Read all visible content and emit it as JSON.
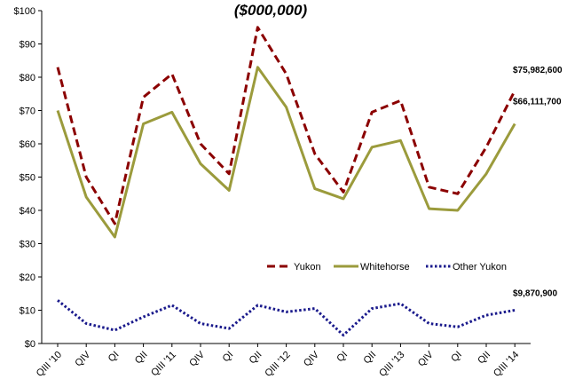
{
  "chart_data": {
    "type": "line",
    "title": "($000,000)",
    "categories": [
      "QIII '10",
      "QIV",
      "QI",
      "QII",
      "QIII '11",
      "QIV",
      "QI",
      "QII",
      "QIII '12",
      "QIV",
      "QI",
      "QII",
      "QIII '13",
      "QIV",
      "QI",
      "QII",
      "QIII '14"
    ],
    "series": [
      {
        "name": "Yukon",
        "color": "#8b0000",
        "style": "dashed",
        "values": [
          83,
          50,
          36,
          74,
          81,
          60,
          51,
          95,
          81,
          57,
          45.5,
          69.5,
          73,
          47,
          45,
          59,
          76
        ]
      },
      {
        "name": "Whitehorse",
        "color": "#9b9b3c",
        "style": "solid",
        "values": [
          70,
          44,
          32,
          66,
          69.5,
          54,
          46,
          83,
          71,
          46.5,
          43.5,
          59,
          61,
          40.5,
          40,
          51,
          66
        ]
      },
      {
        "name": "Other Yukon",
        "color": "#1a1a8c",
        "style": "dotted",
        "values": [
          13,
          6,
          4,
          8,
          11.5,
          6,
          4.5,
          11.5,
          9.5,
          10.5,
          2.5,
          10.5,
          12,
          6,
          5,
          8.5,
          10
        ]
      }
    ],
    "end_labels": [
      "$75,982,600",
      "$66,111,700",
      "$9,870,900"
    ],
    "yticks": [
      "$0",
      "$10",
      "$20",
      "$30",
      "$40",
      "$50",
      "$60",
      "$70",
      "$80",
      "$90",
      "$100"
    ],
    "ylim": [
      0,
      100
    ],
    "grid": false,
    "legend": "right"
  }
}
